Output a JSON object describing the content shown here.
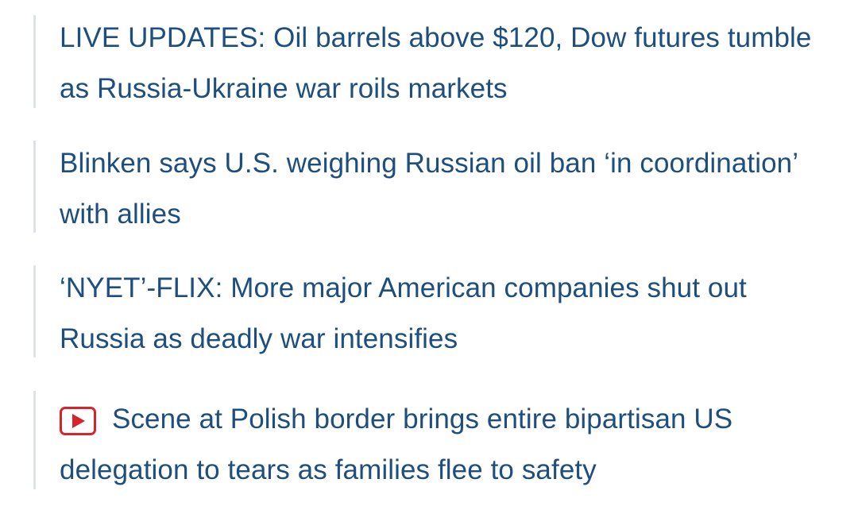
{
  "colors": {
    "link_text": "#1e4e7e",
    "rule": "#dde3ea",
    "video_badge": "#d8232a"
  },
  "headlines": [
    {
      "text": "LIVE UPDATES: Oil barrels above $120, Dow futures tumble as Russia-Ukraine war roils markets",
      "has_video": false
    },
    {
      "text": "Blinken says U.S. weighing Russian oil ban ‘in coordination’ with allies",
      "has_video": false
    },
    {
      "text": "‘NYET’-FLIX: More major American companies shut out Russia as deadly war intensifies",
      "has_video": false
    },
    {
      "text": "Scene at Polish border brings entire bipartisan US delegation to tears as families flee to safety",
      "has_video": true,
      "icon": "play-video-icon"
    }
  ]
}
